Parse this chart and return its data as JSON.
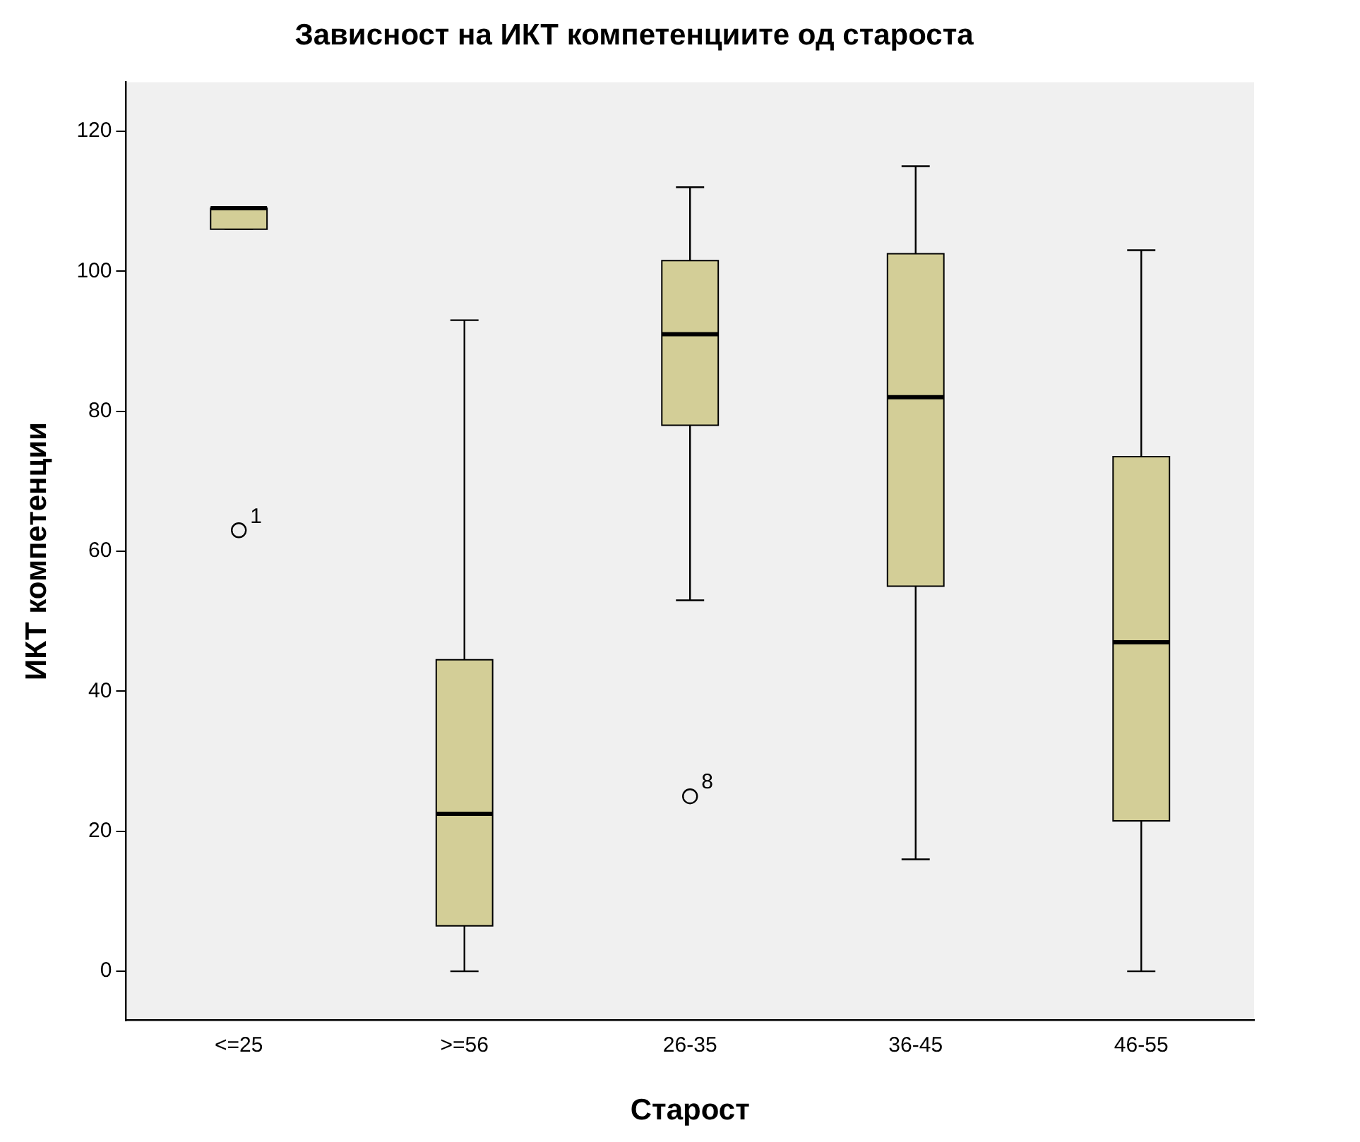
{
  "chart_data": {
    "type": "box",
    "title": "Зависност на ИКТ компетенциите од староста",
    "xlabel": "Старост",
    "ylabel": "ИКТ компетенции",
    "categories": [
      "<=25",
      ">=56",
      "26-35",
      "36-45",
      "46-55"
    ],
    "color": "#d3ce97",
    "boxes": [
      {
        "low": 106,
        "q1": 106,
        "median": 109,
        "q3": 109,
        "high": 109,
        "outliers": [
          63
        ]
      },
      {
        "low": 0,
        "q1": 6.5,
        "median": 22.5,
        "q3": 44.5,
        "high": 93
      },
      {
        "low": 53,
        "q1": 78,
        "median": 91,
        "q3": 101.5,
        "high": 112,
        "outliers": [
          25
        ]
      },
      {
        "low": 16,
        "q1": 55,
        "median": 82,
        "q3": 102.5,
        "high": 115
      },
      {
        "low": 0,
        "q1": 21.5,
        "median": 47,
        "q3": 73.5,
        "high": 103
      }
    ],
    "ylim": [
      -7,
      127
    ],
    "yticks": [
      0,
      20,
      40,
      60,
      80,
      100,
      120
    ],
    "annotations": [
      "1",
      "8"
    ],
    "grid": false,
    "legend": false
  }
}
